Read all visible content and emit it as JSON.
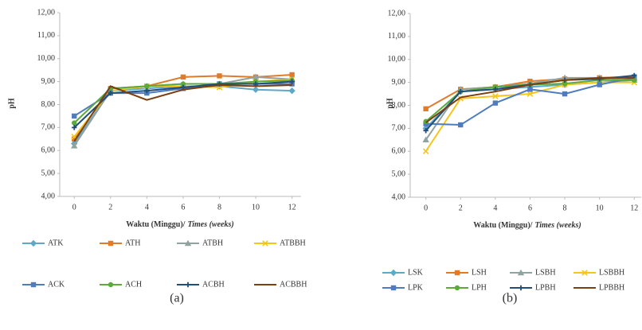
{
  "chart_data": [
    {
      "type": "line",
      "label": "(a)",
      "ylabel": "pH",
      "xlabel": "Waktu  (Minggu)/",
      "xlabel_em": "Times (weeks)",
      "x": [
        0,
        2,
        4,
        6,
        8,
        10,
        12
      ],
      "xlim": [
        -0.8,
        12.5
      ],
      "xticks": [
        0,
        2,
        4,
        6,
        8,
        10,
        12
      ],
      "ylim": [
        4,
        12
      ],
      "yticks": [
        {
          "value": 4,
          "label": "4,00"
        },
        {
          "value": 5,
          "label": "5,00"
        },
        {
          "value": 6,
          "label": "6,00"
        },
        {
          "value": 7,
          "label": "7,00"
        },
        {
          "value": 8,
          "label": "8,00"
        },
        {
          "value": 9,
          "label": "9,00"
        },
        {
          "value": 10,
          "label": "10,00"
        },
        {
          "value": 11,
          "label": "11,00"
        },
        {
          "value": 12,
          "label": "12,00"
        }
      ],
      "series": [
        {
          "name": "ATK",
          "color": "#5fa8c8",
          "marker": "diamond",
          "values": [
            6.3,
            8.6,
            8.7,
            8.8,
            8.8,
            8.65,
            8.6
          ]
        },
        {
          "name": "ATH",
          "color": "#e07b2a",
          "marker": "square",
          "values": [
            6.5,
            8.7,
            8.8,
            9.2,
            9.25,
            9.2,
            9.3
          ]
        },
        {
          "name": "ATBH",
          "color": "#8fa3a0",
          "marker": "triangle",
          "values": [
            6.2,
            8.6,
            8.8,
            8.9,
            8.9,
            9.2,
            9.1
          ]
        },
        {
          "name": "ATBBH",
          "color": "#f5c518",
          "marker": "x",
          "values": [
            6.6,
            8.6,
            8.8,
            8.8,
            8.75,
            9.0,
            9.1
          ]
        },
        {
          "name": "ACK",
          "color": "#4f7bbf",
          "marker": "square",
          "values": [
            7.5,
            8.5,
            8.5,
            8.7,
            8.9,
            8.9,
            8.9
          ]
        },
        {
          "name": "ACH",
          "color": "#5aaa3c",
          "marker": "circle",
          "values": [
            7.2,
            8.7,
            8.8,
            8.9,
            8.9,
            9.0,
            9.05
          ]
        },
        {
          "name": "ACBH",
          "color": "#1f4e79",
          "marker": "plus",
          "values": [
            7.0,
            8.5,
            8.6,
            8.75,
            8.9,
            8.9,
            9.0
          ]
        },
        {
          "name": "ACBBH",
          "color": "#7b3f10",
          "marker": "none",
          "values": [
            6.4,
            8.8,
            8.2,
            8.65,
            8.85,
            8.8,
            8.85
          ]
        }
      ]
    },
    {
      "type": "line",
      "label": "(b)",
      "ylabel": "pH",
      "xlabel": "Waktu (Minggu)/",
      "xlabel_em": "Times (weeks)",
      "x": [
        0,
        2,
        4,
        6,
        8,
        10,
        12
      ],
      "xlim": [
        -0.9,
        12.4
      ],
      "xticks": [
        0,
        2,
        4,
        6,
        8,
        10,
        12
      ],
      "ylim": [
        4,
        12
      ],
      "yticks": [
        {
          "value": 4,
          "label": "4,00"
        },
        {
          "value": 5,
          "label": "5,00"
        },
        {
          "value": 6,
          "label": "6,00"
        },
        {
          "value": 7,
          "label": "7,00"
        },
        {
          "value": 8,
          "label": "8,00"
        },
        {
          "value": 9,
          "label": "9,00"
        },
        {
          "value": 10,
          "label": "10,00"
        },
        {
          "value": 11,
          "label": "11,00"
        },
        {
          "value": 12,
          "label": "12,00"
        }
      ],
      "series": [
        {
          "name": "LSK",
          "color": "#5fa8c8",
          "marker": "diamond",
          "values": [
            7.0,
            8.6,
            8.7,
            8.8,
            8.9,
            9.0,
            9.1
          ]
        },
        {
          "name": "LSH",
          "color": "#e07b2a",
          "marker": "square",
          "values": [
            7.85,
            8.7,
            8.8,
            9.05,
            9.15,
            9.2,
            9.25
          ]
        },
        {
          "name": "LSBH",
          "color": "#8fa3a0",
          "marker": "triangle",
          "values": [
            6.5,
            8.7,
            8.8,
            8.95,
            9.2,
            9.2,
            9.1
          ]
        },
        {
          "name": "LSBBH",
          "color": "#f5c518",
          "marker": "x",
          "values": [
            6.0,
            8.3,
            8.4,
            8.5,
            8.9,
            9.0,
            9.0
          ]
        },
        {
          "name": "LPK",
          "color": "#4f7bbf",
          "marker": "square",
          "values": [
            7.2,
            7.15,
            8.1,
            8.7,
            8.5,
            8.9,
            9.2
          ]
        },
        {
          "name": "LPH",
          "color": "#5aaa3c",
          "marker": "circle",
          "values": [
            7.3,
            8.6,
            8.8,
            8.9,
            8.95,
            9.1,
            9.1
          ]
        },
        {
          "name": "LPBH",
          "color": "#1f4e79",
          "marker": "plus",
          "values": [
            6.9,
            8.6,
            8.7,
            8.9,
            9.1,
            9.15,
            9.3
          ]
        },
        {
          "name": "LPBBH",
          "color": "#7b3f10",
          "marker": "none",
          "values": [
            7.25,
            8.35,
            8.6,
            8.9,
            9.1,
            9.2,
            9.2
          ]
        }
      ]
    }
  ]
}
